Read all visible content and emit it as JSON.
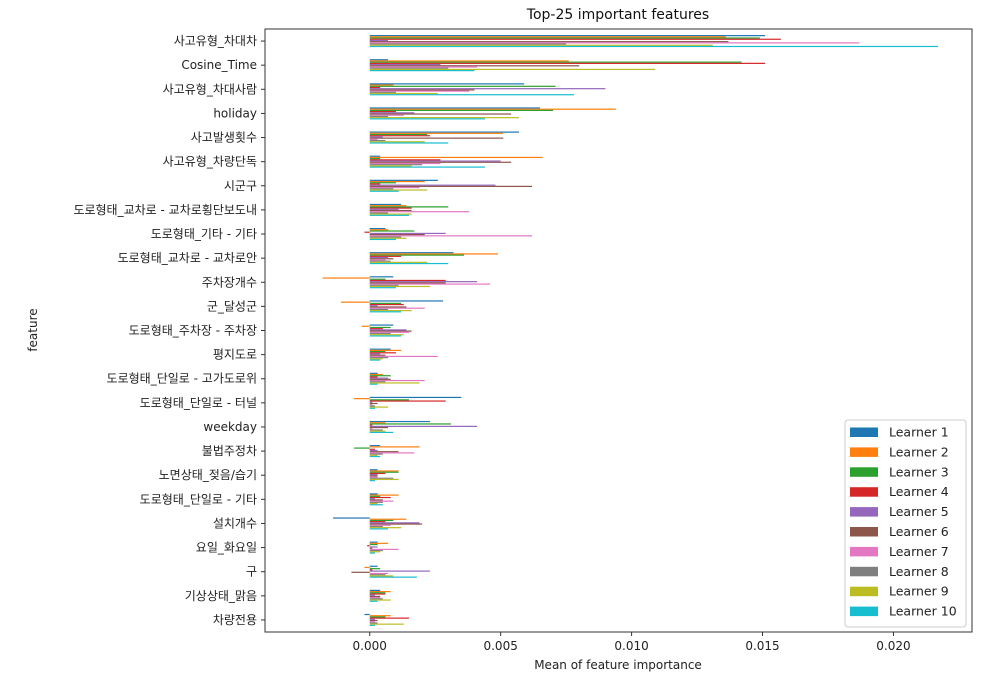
{
  "chart_data": {
    "type": "bar",
    "orientation": "horizontal",
    "title": "Top-25 important features",
    "xlabel": "Mean of feature importance",
    "ylabel": "feature",
    "xlim": [
      -0.004,
      0.023
    ],
    "x_ticks": [
      0.0,
      0.005,
      0.01,
      0.015,
      0.02
    ],
    "x_tick_labels": [
      "0.000",
      "0.005",
      "0.010",
      "0.015",
      "0.020"
    ],
    "legend_position": "lower-right",
    "grid": false,
    "categories": [
      "사고유형_차대차",
      "Cosine_Time",
      "사고유형_차대사람",
      "holiday",
      "사고발생횟수",
      "사고유형_차량단독",
      "시군구",
      "도로형태_교차로 - 교차로횡단보도내",
      "도로형태_기타 - 기타",
      "도로형태_교차로 - 교차로안",
      "주차장개수",
      "군_달성군",
      "도로형태_주차장 - 주차장",
      "평지도로",
      "도로형태_단일로 - 고가도로위",
      "도로형태_단일로 - 터널",
      "weekday",
      "불법주정차",
      "노면상태_젖음/습기",
      "도로형태_단일로 - 기타",
      "설치개수",
      "요일_화요일",
      "구",
      "기상상태_맑음",
      "차량전용"
    ],
    "series": [
      {
        "name": "Learner 1",
        "color": "#1f77b4",
        "values": [
          0.0151,
          0.0007,
          0.0059,
          0.0065,
          0.0057,
          0.0004,
          0.0026,
          0.0012,
          0.0006,
          0.0032,
          0.0009,
          0.0028,
          0.0009,
          0.0008,
          0.0003,
          0.0035,
          0.0023,
          0.0004,
          0.0003,
          0.0003,
          -0.0014,
          0.0003,
          0.0003,
          0.0004,
          -0.0002
        ]
      },
      {
        "name": "Learner 2",
        "color": "#ff7f0e",
        "values": [
          0.0136,
          0.0076,
          0.0009,
          0.0094,
          0.0051,
          0.0066,
          0.0021,
          0.0014,
          0.0007,
          0.0049,
          -0.0018,
          -0.0011,
          -0.0003,
          0.0012,
          0.0005,
          -0.0006,
          0.0006,
          0.0019,
          0.0011,
          0.0011,
          0.0014,
          0.0007,
          -0.0002,
          0.0008,
          0.0008
        ]
      },
      {
        "name": "Learner 3",
        "color": "#2ca02c",
        "values": [
          0.0149,
          0.0142,
          0.0071,
          0.007,
          0.0022,
          0.0004,
          0.001,
          0.003,
          0.0017,
          0.0036,
          0.0006,
          0.0012,
          0.0008,
          0.0006,
          0.0008,
          0.0015,
          0.0031,
          -0.0006,
          0.0011,
          0.0004,
          0.0009,
          0.0003,
          0.0004,
          0.0006,
          0.0006
        ]
      },
      {
        "name": "Learner 4",
        "color": "#d62728",
        "values": [
          0.0157,
          0.0151,
          0.0004,
          0.001,
          0.0023,
          0.0027,
          0.0004,
          0.0016,
          -0.0002,
          0.0012,
          0.0029,
          0.0013,
          0.0005,
          0.001,
          0.0003,
          0.0029,
          0.0001,
          0.0002,
          0.0006,
          0.0008,
          0.0006,
          -0.0001,
          0.0001,
          0.0006,
          0.0015
        ]
      },
      {
        "name": "Learner 5",
        "color": "#9467bd",
        "values": [
          0.0007,
          0.0027,
          0.009,
          0.0017,
          0.0005,
          0.005,
          0.0048,
          0.0011,
          0.0029,
          0.0007,
          0.0041,
          0.0003,
          0.0014,
          0.0004,
          0.0007,
          0.0001,
          0.0041,
          0.0003,
          0.0003,
          0.0002,
          0.0019,
          0.0003,
          0.0023,
          0.0002,
          0.0002
        ]
      },
      {
        "name": "Learner 6",
        "color": "#8c564b",
        "values": [
          0.0137,
          0.008,
          0.004,
          0.0054,
          0.0051,
          0.0054,
          0.0062,
          0.0016,
          0.0021,
          0.0009,
          0.0029,
          0.0014,
          0.0016,
          0.0006,
          0.0008,
          0.0003,
          0.0007,
          0.0011,
          0.0003,
          0.0005,
          0.002,
          0.0001,
          -0.0007,
          0.0004,
          0.0003
        ]
      },
      {
        "name": "Learner 7",
        "color": "#e377c2",
        "values": [
          0.0187,
          0.0041,
          0.0038,
          0.0013,
          0.0003,
          0.0027,
          0.0019,
          0.0038,
          0.0062,
          0.0006,
          0.0046,
          0.0021,
          0.0015,
          0.0026,
          0.0021,
          0.0001,
          0.0001,
          0.0017,
          0.0003,
          0.0009,
          0.0008,
          0.0011,
          0.0007,
          0.0004,
          0.0002
        ]
      },
      {
        "name": "Learner 8",
        "color": "#7f7f7f",
        "values": [
          0.0075,
          0.003,
          0.001,
          0.0007,
          0.0006,
          0.002,
          0.0009,
          0.0007,
          0.0012,
          0.0008,
          0.0011,
          0.0007,
          0.0008,
          0.0007,
          0.0006,
          0.0002,
          0.0005,
          0.0005,
          0.0009,
          0.0005,
          0.0005,
          0.0005,
          0.0006,
          0.0005,
          0.0003
        ]
      },
      {
        "name": "Learner 9",
        "color": "#bcbd22",
        "values": [
          0.0131,
          0.0109,
          0.0026,
          0.0057,
          0.0021,
          0.0016,
          0.0022,
          0.0016,
          0.0014,
          0.0022,
          0.0023,
          0.0016,
          0.0013,
          0.0005,
          0.0019,
          0.0007,
          0.0006,
          0.0003,
          0.0011,
          0.0003,
          0.0012,
          0.0004,
          0.0009,
          0.0008,
          0.0013
        ]
      },
      {
        "name": "Learner 10",
        "color": "#17becf",
        "values": [
          0.0217,
          0.004,
          0.0078,
          0.0044,
          0.003,
          0.0044,
          0.0011,
          0.0015,
          0.001,
          0.003,
          0.001,
          0.0012,
          0.0012,
          0.0004,
          0.0003,
          0.0002,
          0.0009,
          0.0004,
          0.0002,
          0.0005,
          0.0007,
          0.0002,
          0.0018,
          0.0003,
          0.0002
        ]
      }
    ]
  }
}
